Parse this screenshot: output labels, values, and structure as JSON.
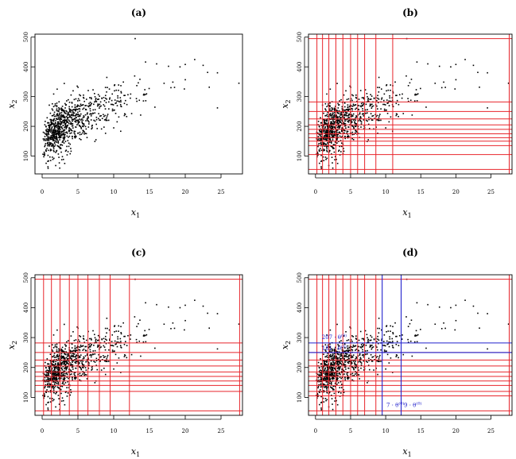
{
  "chart_data": [
    {
      "type": "scatter",
      "title": "(a)",
      "xlabel": "x",
      "xlabel_sub": "1",
      "ylabel": "x",
      "ylabel_sub": "2",
      "xlim": [
        -1,
        28
      ],
      "ylim": [
        40,
        510
      ],
      "xticks": [
        "0",
        "5",
        "10",
        "15",
        "20",
        "25"
      ],
      "yticks": [
        "100",
        "200",
        "300",
        "400",
        "500"
      ],
      "grid": false,
      "points": "gamma-like cloud: x in [0,27.5], y in [55,495], dense near x=2-8, y=130-260; outliers at (13,495), (22.5,405), (24.5,380), (27.5,345), (24.5,262)"
    },
    {
      "type": "scatter",
      "title": "(b)",
      "xlabel": "x",
      "xlabel_sub": "1",
      "ylabel": "x",
      "ylabel_sub": "2",
      "xlim": [
        -1,
        28
      ],
      "ylim": [
        40,
        510
      ],
      "xticks": [
        "0",
        "5",
        "10",
        "15",
        "20",
        "25"
      ],
      "yticks": [
        "100",
        "200",
        "300",
        "400",
        "500"
      ],
      "grid_lines_color": "#e8252b",
      "vertical_cuts": [
        0.2,
        1.0,
        1.9,
        2.9,
        3.9,
        5.0,
        6.0,
        7.0,
        8.6,
        11.0,
        27.6
      ],
      "horizontal_cuts": [
        55,
        105,
        135,
        150,
        162,
        175,
        190,
        205,
        225,
        250,
        282,
        495
      ]
    },
    {
      "type": "scatter",
      "title": "(c)",
      "xlabel": "x",
      "xlabel_sub": "1",
      "ylabel": "x",
      "ylabel_sub": "2",
      "xlim": [
        -1,
        28
      ],
      "ylim": [
        40,
        510
      ],
      "xticks": [
        "0",
        "5",
        "10",
        "15",
        "20",
        "25"
      ],
      "yticks": [
        "100",
        "200",
        "300",
        "400",
        "500"
      ],
      "grid_lines_color": "#e8252b",
      "vertical_cuts": [
        0.2,
        1.3,
        2.5,
        3.8,
        5.0,
        6.4,
        8.0,
        9.5,
        12.2,
        27.6
      ],
      "horizontal_cuts": [
        55,
        120,
        140,
        155,
        170,
        185,
        205,
        225,
        250,
        282,
        495
      ]
    },
    {
      "type": "scatter",
      "title": "(d)",
      "xlabel": "x",
      "xlabel_sub": "1",
      "ylabel": "x",
      "ylabel_sub": "2",
      "xlim": [
        -1,
        28
      ],
      "ylim": [
        40,
        510
      ],
      "xticks": [
        "0",
        "5",
        "10",
        "15",
        "20",
        "25"
      ],
      "yticks": [
        "100",
        "200",
        "300",
        "400",
        "500"
      ],
      "grid_lines_color": "#e8252b",
      "highlight_color": "#2222cc",
      "vertical_cuts": [
        0.2,
        1.0,
        1.9,
        2.9,
        3.9,
        5.0,
        6.0,
        7.0,
        8.6,
        27.6
      ],
      "horizontal_cuts": [
        55,
        105,
        120,
        140,
        155,
        170,
        185,
        205,
        225,
        250,
        495
      ],
      "blue_vertical": [
        9.5,
        12.2
      ],
      "blue_horizontal": [
        250,
        282
      ],
      "annotations": [
        {
          "text": "207 · θ",
          "sup": "(0)",
          "x": 0.9,
          "y": 295
        },
        {
          "text": "181 · θ",
          "sup": "(0)",
          "x": 0.9,
          "y": 258
        },
        {
          "text": "7 · θ",
          "sup": "(0)",
          "x": 10.1,
          "y": 68
        },
        {
          "text": "9 · θ",
          "sup": "(0)",
          "x": 12.6,
          "y": 68
        }
      ]
    }
  ]
}
